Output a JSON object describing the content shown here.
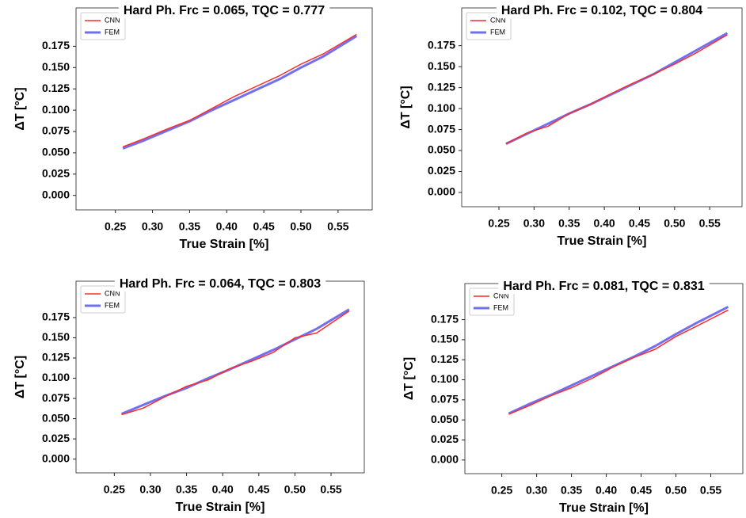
{
  "chart_data": [
    {
      "type": "line",
      "title": "Hard Ph. Frc = 0.065, TQC = 0.777",
      "xlabel": "True Strain [%]",
      "ylabel": "ΔT [°C]",
      "x": [
        0.26,
        0.29,
        0.32,
        0.35,
        0.38,
        0.41,
        0.44,
        0.47,
        0.5,
        0.53,
        0.575
      ],
      "series": [
        {
          "name": "CNN",
          "color": "#ff2a2a",
          "values": [
            0.057,
            0.067,
            0.078,
            0.088,
            0.102,
            0.116,
            0.128,
            0.14,
            0.154,
            0.166,
            0.189
          ]
        },
        {
          "name": "FEM",
          "color": "#7070f0",
          "values": [
            0.055,
            0.065,
            0.076,
            0.087,
            0.1,
            0.112,
            0.124,
            0.136,
            0.15,
            0.163,
            0.187
          ]
        }
      ],
      "xlim": [
        0.197,
        0.596
      ],
      "ylim": [
        -0.017,
        0.22
      ],
      "xticks": [
        0.25,
        {
          "value": 0.3,
          "label": "0.30"
        },
        0.35,
        {
          "value": 0.4,
          "label": "0.40"
        },
        0.45,
        {
          "value": 0.5,
          "label": "0.50"
        },
        0.55
      ],
      "yticks": [
        {
          "value": 0,
          "label": "0.000"
        },
        0.025,
        {
          "value": 0.05,
          "label": "0.050"
        },
        0.075,
        {
          "value": 0.1,
          "label": "0.100"
        },
        0.125,
        {
          "value": 0.15,
          "label": "0.150"
        },
        0.175
      ],
      "legend": "upper left",
      "grid": false
    },
    {
      "type": "line",
      "title": "Hard Ph. Frc = 0.102, TQC = 0.804",
      "xlabel": "True Strain [%]",
      "ylabel": "ΔT [°C]",
      "x": [
        0.26,
        0.29,
        0.32,
        0.35,
        0.38,
        0.41,
        0.44,
        0.47,
        0.5,
        0.53,
        0.575
      ],
      "series": [
        {
          "name": "CNN",
          "color": "#ff2a2a",
          "values": [
            0.058,
            0.071,
            0.079,
            0.094,
            0.105,
            0.118,
            0.13,
            0.141,
            0.153,
            0.166,
            0.188
          ]
        },
        {
          "name": "FEM",
          "color": "#7070f0",
          "values": [
            0.058,
            0.07,
            0.082,
            0.094,
            0.105,
            0.117,
            0.129,
            0.141,
            0.155,
            0.169,
            0.19
          ]
        }
      ],
      "xlim": [
        0.197,
        0.596
      ],
      "ylim": [
        -0.017,
        0.22
      ],
      "xticks": [
        0.25,
        {
          "value": 0.3,
          "label": "0.30"
        },
        0.35,
        {
          "value": 0.4,
          "label": "0.40"
        },
        0.45,
        {
          "value": 0.5,
          "label": "0.50"
        },
        0.55
      ],
      "yticks": [
        {
          "value": 0,
          "label": "0.000"
        },
        0.025,
        {
          "value": 0.05,
          "label": "0.050"
        },
        0.075,
        {
          "value": 0.1,
          "label": "0.100"
        },
        0.125,
        {
          "value": 0.15,
          "label": "0.150"
        },
        0.175
      ],
      "legend": "upper left",
      "grid": false
    },
    {
      "type": "line",
      "title": "Hard Ph. Frc = 0.064, TQC = 0.803",
      "xlabel": "True Strain [%]",
      "ylabel": "ΔT [°C]",
      "x": [
        0.26,
        0.29,
        0.32,
        0.35,
        0.38,
        0.41,
        0.44,
        0.47,
        0.5,
        0.53,
        0.575
      ],
      "series": [
        {
          "name": "CNN",
          "color": "#ff2a2a",
          "values": [
            0.055,
            0.063,
            0.077,
            0.09,
            0.098,
            0.112,
            0.121,
            0.132,
            0.15,
            0.156,
            0.183
          ]
        },
        {
          "name": "FEM",
          "color": "#7070f0",
          "values": [
            0.056,
            0.067,
            0.078,
            0.088,
            0.1,
            0.111,
            0.123,
            0.135,
            0.148,
            0.161,
            0.185
          ]
        }
      ],
      "xlim": [
        0.197,
        0.596
      ],
      "ylim": [
        -0.017,
        0.22
      ],
      "xticks": [
        0.25,
        {
          "value": 0.3,
          "label": "0.30"
        },
        0.35,
        {
          "value": 0.4,
          "label": "0.40"
        },
        0.45,
        {
          "value": 0.5,
          "label": "0.50"
        },
        0.55
      ],
      "yticks": [
        {
          "value": 0,
          "label": "0.000"
        },
        0.025,
        {
          "value": 0.05,
          "label": "0.050"
        },
        0.075,
        {
          "value": 0.1,
          "label": "0.100"
        },
        0.125,
        {
          "value": 0.15,
          "label": "0.150"
        },
        0.175
      ],
      "legend": "upper left",
      "grid": false
    },
    {
      "type": "line",
      "title": "Hard Ph. Frc = 0.081, TQC = 0.831",
      "xlabel": "True Strain [%]",
      "ylabel": "ΔT [°C]",
      "x": [
        0.26,
        0.29,
        0.32,
        0.35,
        0.38,
        0.41,
        0.44,
        0.47,
        0.5,
        0.53,
        0.575
      ],
      "series": [
        {
          "name": "CNN",
          "color": "#ff2a2a",
          "values": [
            0.057,
            0.068,
            0.08,
            0.09,
            0.102,
            0.116,
            0.128,
            0.138,
            0.154,
            0.167,
            0.187
          ]
        },
        {
          "name": "FEM",
          "color": "#7070f0",
          "values": [
            0.058,
            0.07,
            0.081,
            0.093,
            0.105,
            0.117,
            0.129,
            0.142,
            0.157,
            0.171,
            0.191
          ]
        }
      ],
      "xlim": [
        0.197,
        0.596
      ],
      "ylim": [
        -0.017,
        0.22
      ],
      "xticks": [
        0.25,
        {
          "value": 0.3,
          "label": "0.30"
        },
        0.35,
        {
          "value": 0.4,
          "label": "0.40"
        },
        0.45,
        {
          "value": 0.5,
          "label": "0.50"
        },
        0.55
      ],
      "yticks": [
        {
          "value": 0,
          "label": "0.000"
        },
        0.025,
        {
          "value": 0.05,
          "label": "0.050"
        },
        0.075,
        {
          "value": 0.1,
          "label": "0.100"
        },
        0.125,
        {
          "value": 0.15,
          "label": "0.150"
        },
        0.175
      ],
      "legend": "upper left",
      "grid": false
    }
  ]
}
